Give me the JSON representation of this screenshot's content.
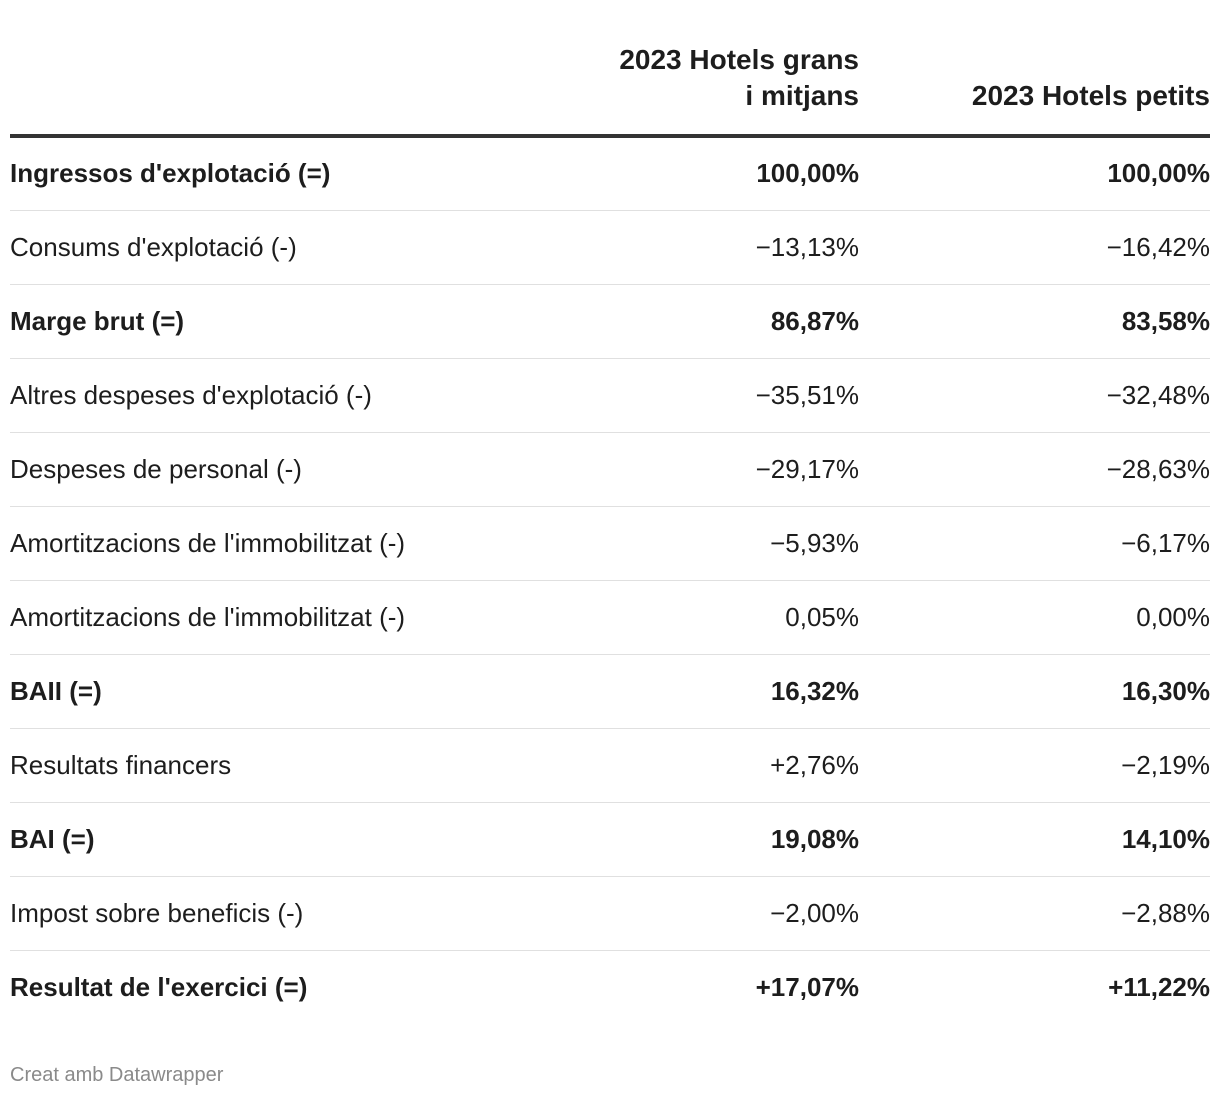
{
  "chart_data": {
    "type": "table",
    "columns": [
      "",
      "2023 Hotels grans i mitjans",
      "2023 Hotels petits"
    ],
    "rows": [
      {
        "label": "Ingressos d'explotació (=)",
        "values": [
          "100,00%",
          "100,00%"
        ],
        "bold": true
      },
      {
        "label": "Consums d'explotació (-)",
        "values": [
          "−13,13%",
          "−16,42%"
        ],
        "bold": false
      },
      {
        "label": "Marge brut (=)",
        "values": [
          "86,87%",
          "83,58%"
        ],
        "bold": true
      },
      {
        "label": "Altres despeses d'explotació (-)",
        "values": [
          "−35,51%",
          "−32,48%"
        ],
        "bold": false
      },
      {
        "label": "Despeses de personal (-)",
        "values": [
          "−29,17%",
          "−28,63%"
        ],
        "bold": false
      },
      {
        "label": "Amortitzacions de l'immobilitzat (-)",
        "values": [
          "−5,93%",
          "−6,17%"
        ],
        "bold": false
      },
      {
        "label": "Amortitzacions de l'immobilitzat (-)",
        "values": [
          "0,05%",
          "0,00%"
        ],
        "bold": false
      },
      {
        "label": "BAII (=)",
        "values": [
          "16,32%",
          "16,30%"
        ],
        "bold": true
      },
      {
        "label": "Resultats financers",
        "values": [
          "+2,76%",
          "−2,19%"
        ],
        "bold": false
      },
      {
        "label": "BAI (=)",
        "values": [
          "19,08%",
          "14,10%"
        ],
        "bold": true
      },
      {
        "label": "Impost sobre beneficis (-)",
        "values": [
          "−2,00%",
          "−2,88%"
        ],
        "bold": false
      },
      {
        "label": "Resultat de l'exercici (=)",
        "values": [
          "+17,07%",
          "+11,22%"
        ],
        "bold": true
      }
    ]
  },
  "footer": {
    "credit": "Creat amb Datawrapper"
  },
  "colors": {
    "text": "#1d1d1d",
    "header_rule": "#333333",
    "row_rule": "#e0e0e0",
    "footer_text": "#8a8a8a"
  }
}
